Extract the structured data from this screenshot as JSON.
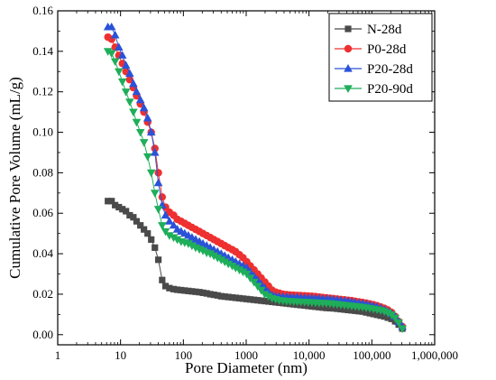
{
  "chart_data": {
    "type": "scatter",
    "xlabel": "Pore Diameter (nm)",
    "ylabel": "Cumulative Pore Volume (mL/g)",
    "xscale": "log",
    "xlim": [
      1,
      1000000
    ],
    "ylim": [
      -0.005,
      0.16
    ],
    "x_ticks": [
      1,
      10,
      100,
      1000,
      10000,
      100000,
      1000000
    ],
    "x_tick_labels": [
      "1",
      "10",
      "100",
      "1000",
      "10,000",
      "100,000",
      "1,000,000"
    ],
    "y_ticks": [
      0.0,
      0.02,
      0.04,
      0.06,
      0.08,
      0.1,
      0.12,
      0.14,
      0.16
    ],
    "y_tick_labels": [
      "0.00",
      "0.02",
      "0.04",
      "0.06",
      "0.08",
      "0.10",
      "0.12",
      "0.14",
      "0.16"
    ],
    "legend_position": "top-right",
    "grid": false,
    "series": [
      {
        "name": "N-28d",
        "color": "#4a4a4a",
        "marker": "square",
        "x": [
          6.3,
          7.2,
          8.2,
          9.4,
          10.7,
          12.2,
          14,
          16,
          18,
          20.7,
          23.6,
          27,
          30.8,
          35.2,
          40,
          46,
          52,
          60,
          70,
          80,
          92,
          105,
          120,
          137,
          157,
          180,
          205,
          235,
          268,
          306,
          350,
          400,
          456,
          520,
          600,
          680,
          780,
          890,
          1020,
          1160,
          1330,
          1520,
          1730,
          1980,
          2260,
          2580,
          2950,
          3370,
          3850,
          4400,
          5000,
          5700,
          6500,
          7400,
          8500,
          9700,
          11100,
          12700,
          14500,
          16500,
          18900,
          21600,
          24600,
          28100,
          32100,
          36700,
          41900,
          47800,
          54600,
          62400,
          71200,
          81300,
          92900,
          106000,
          121000,
          138000,
          158000,
          180000,
          206000,
          235000,
          268000,
          306000
        ],
        "y": [
          0.066,
          0.066,
          0.064,
          0.063,
          0.062,
          0.061,
          0.059,
          0.058,
          0.056,
          0.054,
          0.052,
          0.05,
          0.047,
          0.043,
          0.037,
          0.027,
          0.024,
          0.023,
          0.0225,
          0.0222,
          0.022,
          0.0218,
          0.0216,
          0.0214,
          0.0212,
          0.021,
          0.0207,
          0.0204,
          0.02,
          0.0197,
          0.0194,
          0.019,
          0.0188,
          0.0186,
          0.0184,
          0.0182,
          0.018,
          0.0178,
          0.0176,
          0.0174,
          0.0172,
          0.017,
          0.0168,
          0.0166,
          0.0164,
          0.0162,
          0.016,
          0.0158,
          0.0156,
          0.0154,
          0.0152,
          0.015,
          0.0148,
          0.0146,
          0.0144,
          0.0142,
          0.014,
          0.0138,
          0.0136,
          0.0134,
          0.0132,
          0.0131,
          0.013,
          0.0128,
          0.0126,
          0.0124,
          0.0122,
          0.012,
          0.0118,
          0.0116,
          0.0114,
          0.011,
          0.0106,
          0.0102,
          0.0098,
          0.0094,
          0.009,
          0.0084,
          0.0078,
          0.0066,
          0.005,
          0.003
        ]
      },
      {
        "name": "P0-28d",
        "color": "#ee3030",
        "marker": "circle",
        "x": [
          6.3,
          7.2,
          8.2,
          9.4,
          10.7,
          12.2,
          14,
          16,
          18,
          20.7,
          23.6,
          27,
          30.8,
          35.2,
          40,
          46,
          52,
          60,
          70,
          80,
          92,
          105,
          120,
          137,
          157,
          180,
          205,
          235,
          268,
          306,
          350,
          400,
          456,
          520,
          600,
          680,
          780,
          890,
          1020,
          1160,
          1330,
          1520,
          1730,
          1980,
          2260,
          2580,
          2950,
          3370,
          3850,
          4400,
          5000,
          5700,
          6500,
          7400,
          8500,
          9700,
          11100,
          12700,
          14500,
          16500,
          18900,
          21600,
          24600,
          28100,
          32100,
          36700,
          41900,
          47800,
          54600,
          62400,
          71200,
          81300,
          92900,
          106000,
          121000,
          138000,
          158000,
          180000,
          206000,
          235000,
          268000,
          306000
        ],
        "y": [
          0.147,
          0.146,
          0.142,
          0.138,
          0.134,
          0.13,
          0.126,
          0.122,
          0.118,
          0.114,
          0.11,
          0.105,
          0.1,
          0.092,
          0.08,
          0.068,
          0.063,
          0.0605,
          0.059,
          0.057,
          0.056,
          0.055,
          0.054,
          0.053,
          0.052,
          0.051,
          0.05,
          0.049,
          0.048,
          0.047,
          0.046,
          0.045,
          0.044,
          0.043,
          0.042,
          0.041,
          0.0395,
          0.038,
          0.036,
          0.034,
          0.032,
          0.03,
          0.028,
          0.026,
          0.024,
          0.022,
          0.021,
          0.0205,
          0.02,
          0.0198,
          0.0196,
          0.0195,
          0.0194,
          0.0193,
          0.0192,
          0.0191,
          0.019,
          0.0188,
          0.0186,
          0.0184,
          0.0182,
          0.018,
          0.0178,
          0.0176,
          0.0174,
          0.0172,
          0.017,
          0.0168,
          0.0165,
          0.0162,
          0.0159,
          0.0156,
          0.0152,
          0.0148,
          0.0143,
          0.0137,
          0.013,
          0.0122,
          0.011,
          0.009,
          0.0065,
          0.004
        ]
      },
      {
        "name": "P20-28d",
        "color": "#2a52d8",
        "marker": "triangle-up",
        "x": [
          6.3,
          7.2,
          8.2,
          9.4,
          10.7,
          12.2,
          14,
          16,
          18,
          20.7,
          23.6,
          27,
          30.8,
          35.2,
          40,
          46,
          52,
          60,
          70,
          80,
          92,
          105,
          120,
          137,
          157,
          180,
          205,
          235,
          268,
          306,
          350,
          400,
          456,
          520,
          600,
          680,
          780,
          890,
          1020,
          1160,
          1330,
          1520,
          1730,
          1980,
          2260,
          2580,
          2950,
          3370,
          3850,
          4400,
          5000,
          5700,
          6500,
          7400,
          8500,
          9700,
          11100,
          12700,
          14500,
          16500,
          18900,
          21600,
          24600,
          28100,
          32100,
          36700,
          41900,
          47800,
          54600,
          62400,
          71200,
          81300,
          92900,
          106000,
          121000,
          138000,
          158000,
          180000,
          206000,
          235000,
          268000,
          306000
        ],
        "y": [
          0.152,
          0.152,
          0.148,
          0.142,
          0.138,
          0.133,
          0.129,
          0.124,
          0.12,
          0.116,
          0.112,
          0.107,
          0.1,
          0.09,
          0.075,
          0.064,
          0.059,
          0.056,
          0.054,
          0.052,
          0.051,
          0.05,
          0.049,
          0.048,
          0.047,
          0.046,
          0.045,
          0.044,
          0.043,
          0.042,
          0.041,
          0.04,
          0.039,
          0.038,
          0.037,
          0.036,
          0.035,
          0.034,
          0.033,
          0.031,
          0.029,
          0.027,
          0.025,
          0.023,
          0.021,
          0.0195,
          0.019,
          0.0188,
          0.0187,
          0.0186,
          0.0185,
          0.0184,
          0.0184,
          0.0183,
          0.0182,
          0.0181,
          0.018,
          0.0179,
          0.0178,
          0.0177,
          0.0176,
          0.0175,
          0.0173,
          0.0171,
          0.0169,
          0.0167,
          0.0165,
          0.0162,
          0.0159,
          0.0156,
          0.0153,
          0.015,
          0.0146,
          0.0142,
          0.0137,
          0.0131,
          0.0124,
          0.0116,
          0.0105,
          0.0088,
          0.0063,
          0.004
        ]
      },
      {
        "name": "P20-90d",
        "color": "#1fae5a",
        "marker": "triangle-down",
        "x": [
          6.3,
          7.2,
          8.2,
          9.4,
          10.7,
          12.2,
          14,
          16,
          18,
          20.7,
          23.6,
          27,
          30.8,
          35.2,
          40,
          46,
          52,
          60,
          70,
          80,
          92,
          105,
          120,
          137,
          157,
          180,
          205,
          235,
          268,
          306,
          350,
          400,
          456,
          520,
          600,
          680,
          780,
          890,
          1020,
          1160,
          1330,
          1520,
          1730,
          1980,
          2260,
          2580,
          2950,
          3370,
          3850,
          4400,
          5000,
          5700,
          6500,
          7400,
          8500,
          9700,
          11100,
          12700,
          14500,
          16500,
          18900,
          21600,
          24600,
          28100,
          32100,
          36700,
          41900,
          47800,
          54600,
          62400,
          71200,
          81300,
          92900,
          106000,
          121000,
          138000,
          158000,
          180000,
          206000,
          235000,
          268000,
          306000
        ],
        "y": [
          0.14,
          0.139,
          0.135,
          0.13,
          0.125,
          0.12,
          0.115,
          0.11,
          0.105,
          0.1,
          0.095,
          0.088,
          0.08,
          0.07,
          0.062,
          0.054,
          0.051,
          0.049,
          0.048,
          0.047,
          0.046,
          0.0455,
          0.045,
          0.044,
          0.043,
          0.0422,
          0.0415,
          0.0405,
          0.04,
          0.039,
          0.038,
          0.037,
          0.036,
          0.035,
          0.034,
          0.033,
          0.032,
          0.031,
          0.03,
          0.028,
          0.026,
          0.024,
          0.022,
          0.02,
          0.019,
          0.018,
          0.0175,
          0.017,
          0.0168,
          0.0166,
          0.0165,
          0.0164,
          0.0163,
          0.0162,
          0.0161,
          0.016,
          0.0159,
          0.0158,
          0.0157,
          0.0156,
          0.0155,
          0.0154,
          0.0152,
          0.015,
          0.0148,
          0.0146,
          0.0144,
          0.0142,
          0.014,
          0.0138,
          0.0136,
          0.0133,
          0.013,
          0.0127,
          0.0124,
          0.012,
          0.0115,
          0.0108,
          0.0098,
          0.0082,
          0.006,
          0.003
        ]
      }
    ]
  }
}
